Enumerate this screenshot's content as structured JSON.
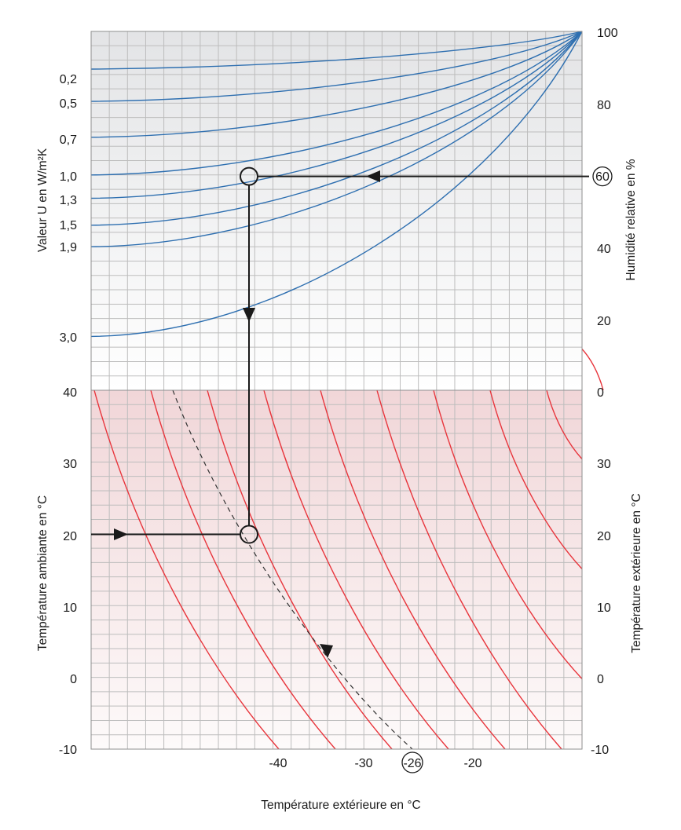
{
  "chart_data": {
    "type": "line",
    "colors": {
      "humidity_curves": "#2e6fb0",
      "temperature_curves": "#e8353c",
      "upper_background_top": "#e3e4e6",
      "lower_background_top": "#f1d6d8",
      "guide": "#1a1a1a",
      "grid": "#bdbdbd"
    },
    "grid": true,
    "upper_panel": {
      "left_axis_label": "Valeur U en W/m²K",
      "right_axis_label": "Humidité relative en %",
      "left_ticks": [
        "0,2",
        "0,5",
        "0,7",
        "1,0",
        "1,3",
        "1,5",
        "1,9",
        "3,0"
      ],
      "right_ticks": [
        "100",
        "80",
        "60",
        "40",
        "20",
        "0"
      ],
      "right_range": [
        0,
        100
      ],
      "u_curves": [
        {
          "u": "0,2",
          "rh_at_left": 89.5
        },
        {
          "u": "0,5",
          "rh_at_left": 80.5
        },
        {
          "u": "0,7",
          "rh_at_left": 70.5
        },
        {
          "u": "1,0",
          "rh_at_left": 60
        },
        {
          "u": "1,3",
          "rh_at_left": 53.5
        },
        {
          "u": "1,5",
          "rh_at_left": 46
        },
        {
          "u": "1,9",
          "rh_at_left": 40
        },
        {
          "u": "3,0",
          "rh_at_left": 15
        }
      ]
    },
    "lower_panel": {
      "left_axis_label": "Température ambiante en °C",
      "right_axis_label": "Température extérieure en °C",
      "left_ticks": [
        "40",
        "30",
        "20",
        "10",
        "0",
        "-10"
      ],
      "right_ticks": [
        "30",
        "20",
        "10",
        "0",
        "-10"
      ],
      "y_range": [
        -10,
        40
      ],
      "curves_count": 10
    },
    "x_axis": {
      "label": "Température extérieure en °C",
      "ticks": [
        "-40",
        "-30",
        "-26",
        "-20"
      ]
    },
    "example": {
      "relative_humidity": "60",
      "u_value": "1,0",
      "room_temperature": 20,
      "result_outside_temperature": "-26"
    }
  }
}
